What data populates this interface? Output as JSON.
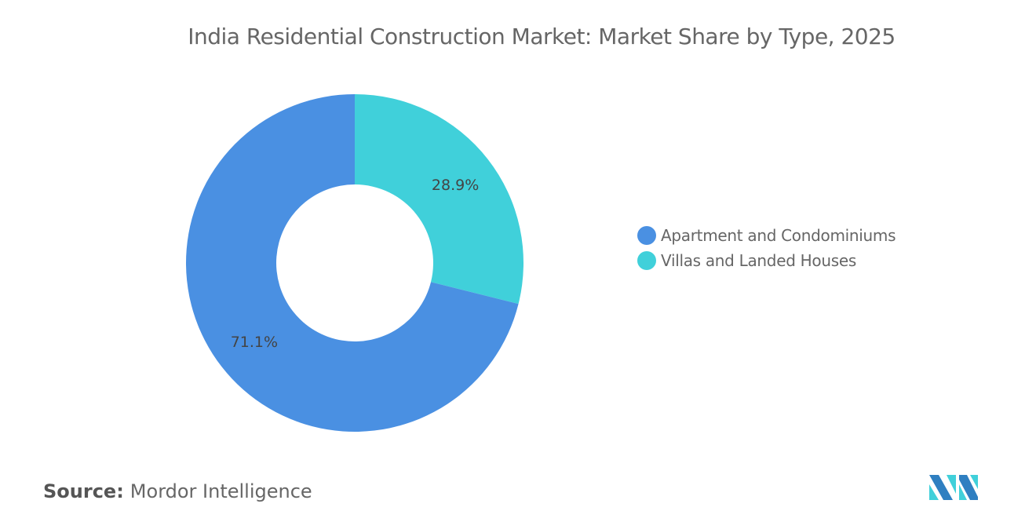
{
  "chart_data": {
    "type": "pie",
    "donut": true,
    "title": "India Residential Construction Market: Market Share by Type, 2025",
    "series": [
      {
        "name": "Villas and Landed Houses",
        "value": 28.9,
        "label": "28.9%",
        "color": "#40d0da"
      },
      {
        "name": "Apartment and Condominiums",
        "value": 71.1,
        "label": "71.1%",
        "color": "#4a90e2"
      }
    ],
    "legend_order": [
      1,
      0
    ],
    "legend_position": "right"
  },
  "source": {
    "label": "Source:",
    "value": "Mordor Intelligence"
  },
  "logo": {
    "name": "mordor-intelligence-logo",
    "colors": [
      "#2f7fc1",
      "#40d0da"
    ]
  }
}
